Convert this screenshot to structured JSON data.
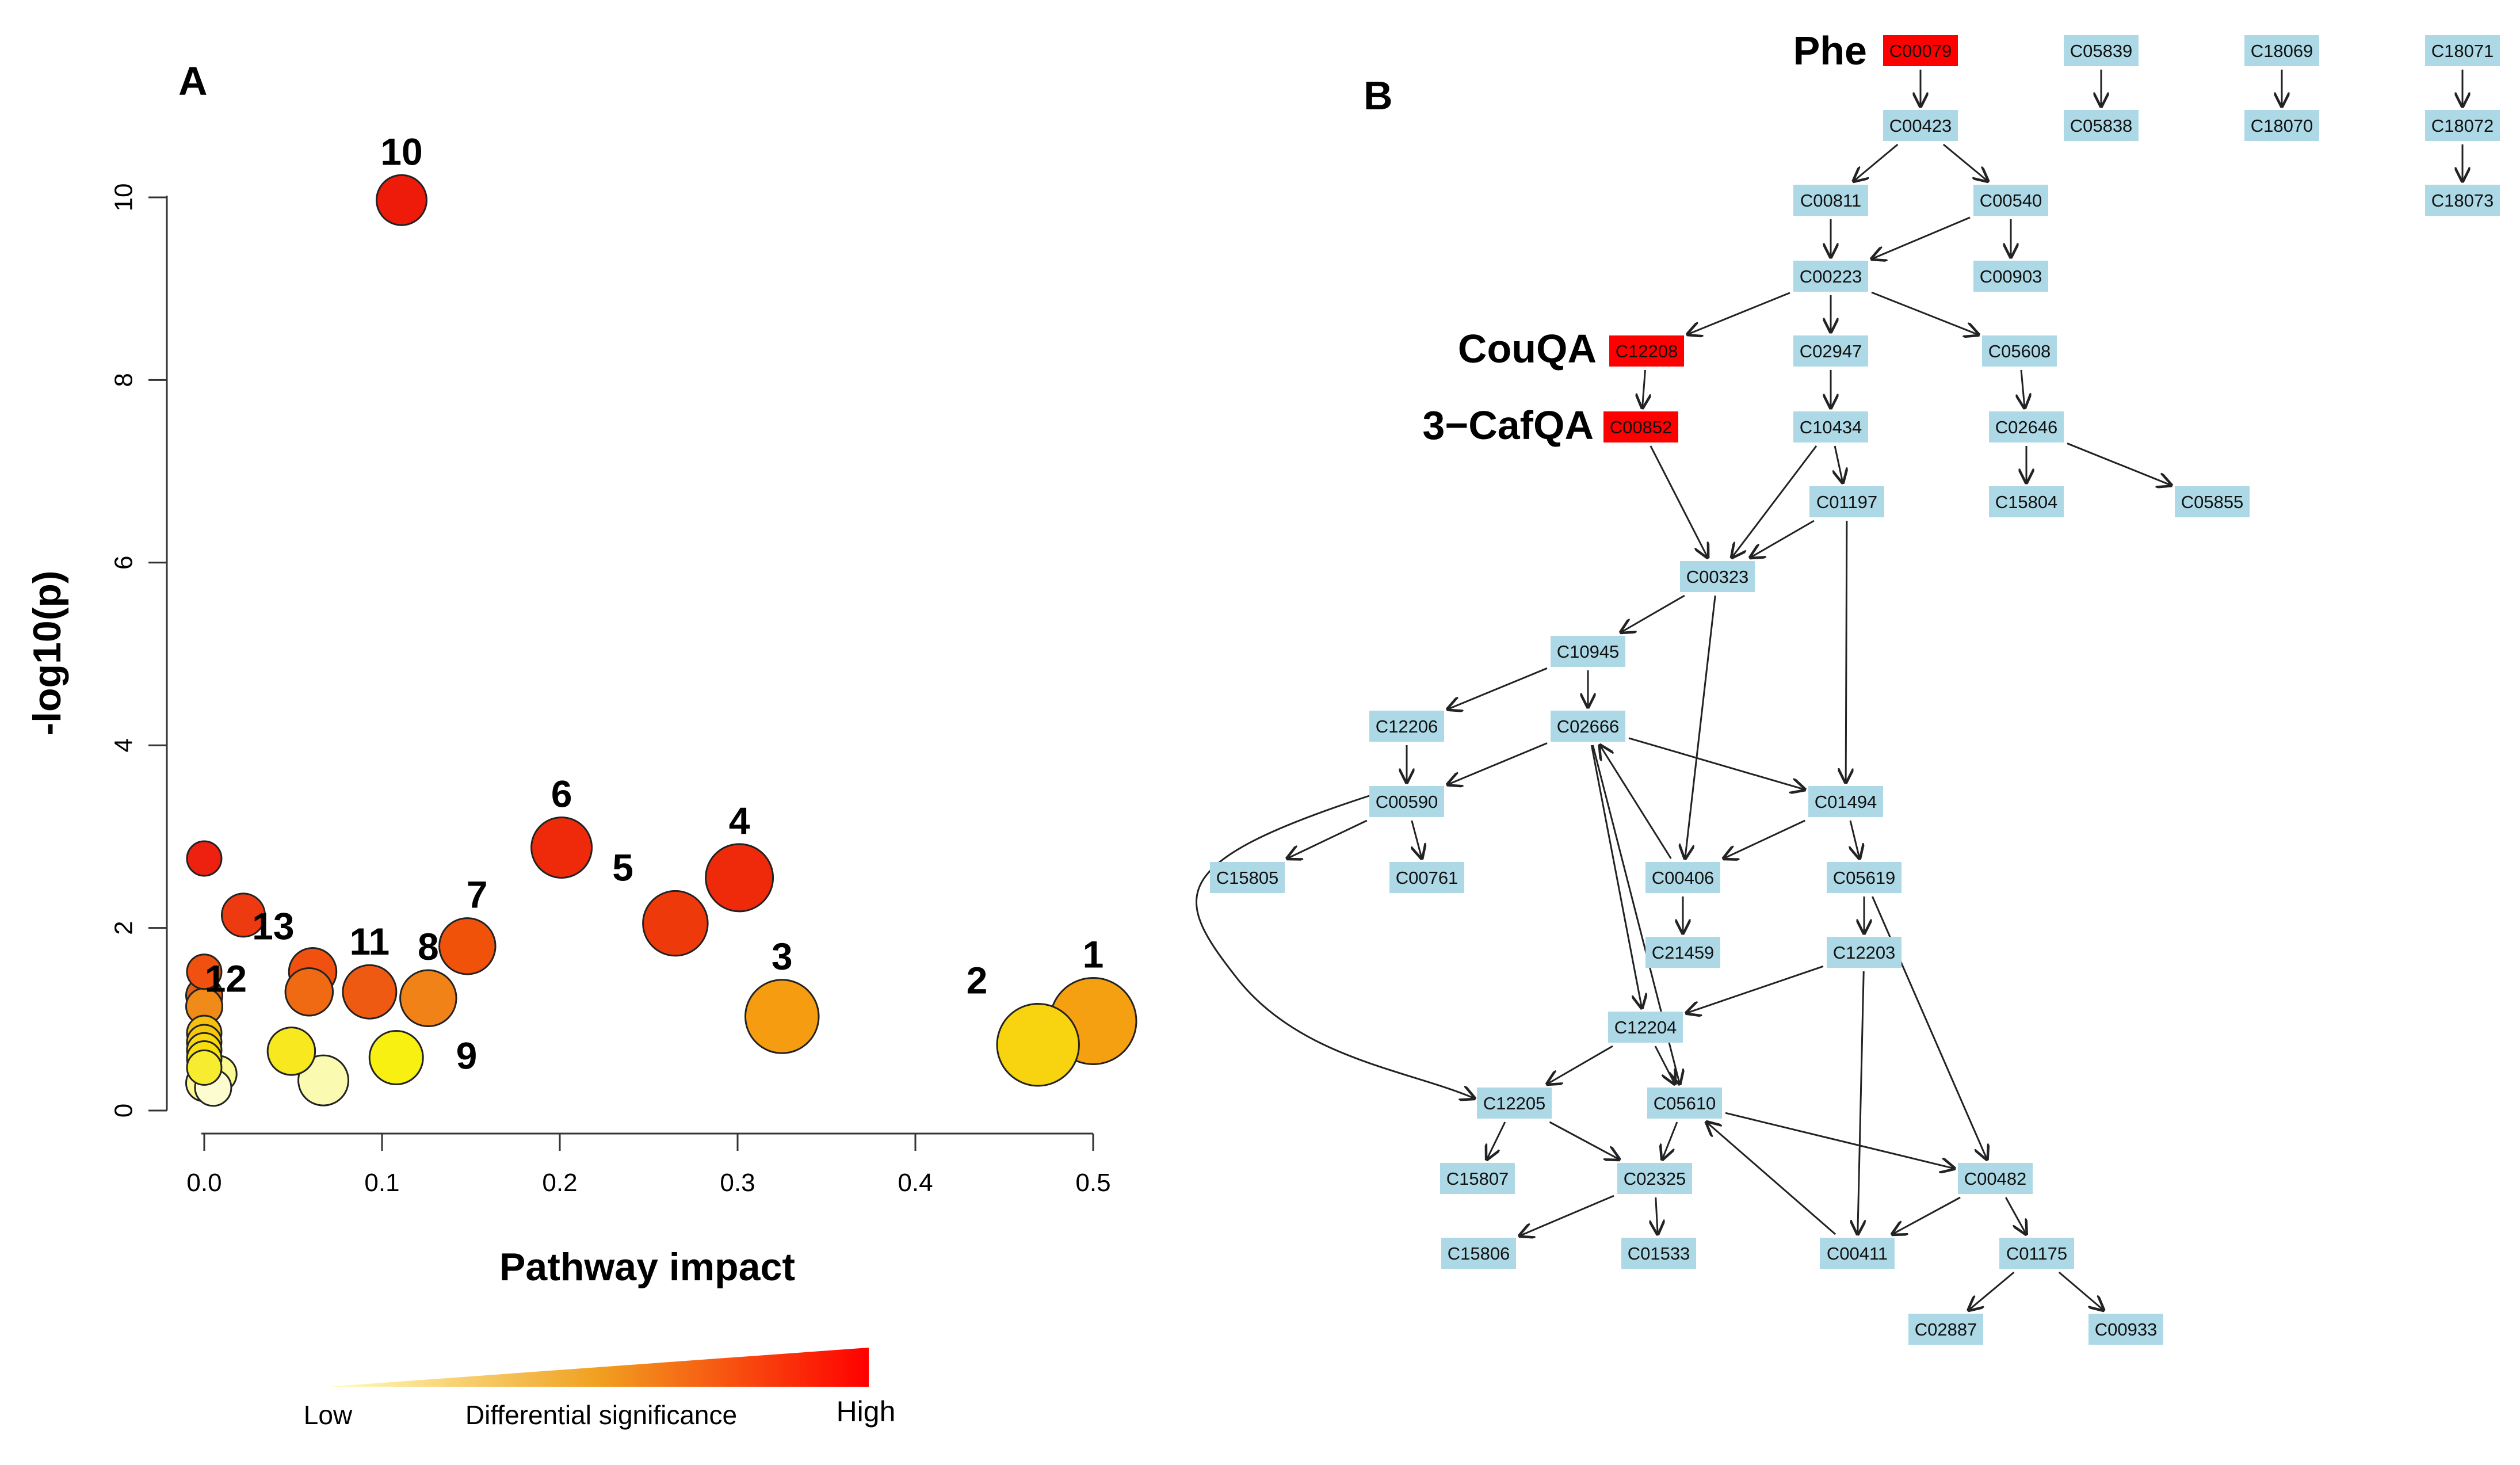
{
  "panel_a": {
    "label": "A",
    "colorbar": {
      "low": "Low",
      "mid": "Differential significance",
      "high": "High",
      "low_color": "#ffffc0",
      "mid_color": "#f0a020",
      "high_color": "#ff0000"
    }
  },
  "panel_b": {
    "label": "B",
    "highlight_color": "#ff0000",
    "node_color": "#add8e6",
    "annotations": {
      "phe": "Phe",
      "couqa": "CouQA",
      "cafqa": "3−CafQA"
    },
    "nodes": [
      {
        "id": "C00079",
        "hl": true
      },
      {
        "id": "C05839",
        "hl": false
      },
      {
        "id": "C18069",
        "hl": false
      },
      {
        "id": "C18071",
        "hl": false
      },
      {
        "id": "C00423",
        "hl": false
      },
      {
        "id": "C05838",
        "hl": false
      },
      {
        "id": "C18070",
        "hl": false
      },
      {
        "id": "C18072",
        "hl": false
      },
      {
        "id": "C00811",
        "hl": false
      },
      {
        "id": "C00540",
        "hl": false
      },
      {
        "id": "C18073",
        "hl": false
      },
      {
        "id": "C00223",
        "hl": false
      },
      {
        "id": "C00903",
        "hl": false
      },
      {
        "id": "C12208",
        "hl": true
      },
      {
        "id": "C02947",
        "hl": false
      },
      {
        "id": "C05608",
        "hl": false
      },
      {
        "id": "C00852",
        "hl": true
      },
      {
        "id": "C10434",
        "hl": false
      },
      {
        "id": "C02646",
        "hl": false
      },
      {
        "id": "C01197",
        "hl": false
      },
      {
        "id": "C15804",
        "hl": false
      },
      {
        "id": "C05855",
        "hl": false
      },
      {
        "id": "C00323",
        "hl": false
      },
      {
        "id": "C10945",
        "hl": false
      },
      {
        "id": "C12206",
        "hl": false
      },
      {
        "id": "C02666",
        "hl": false
      },
      {
        "id": "C00590",
        "hl": false
      },
      {
        "id": "C01494",
        "hl": false
      },
      {
        "id": "C15805",
        "hl": false
      },
      {
        "id": "C00761",
        "hl": false
      },
      {
        "id": "C00406",
        "hl": false
      },
      {
        "id": "C05619",
        "hl": false
      },
      {
        "id": "C21459",
        "hl": false
      },
      {
        "id": "C12203",
        "hl": false
      },
      {
        "id": "C12204",
        "hl": false
      },
      {
        "id": "C12205",
        "hl": false
      },
      {
        "id": "C05610",
        "hl": false
      },
      {
        "id": "C15807",
        "hl": false
      },
      {
        "id": "C02325",
        "hl": false
      },
      {
        "id": "C00482",
        "hl": false
      },
      {
        "id": "C15806",
        "hl": false
      },
      {
        "id": "C01533",
        "hl": false
      },
      {
        "id": "C00411",
        "hl": false
      },
      {
        "id": "C01175",
        "hl": false
      },
      {
        "id": "C02887",
        "hl": false
      },
      {
        "id": "C00933",
        "hl": false
      }
    ],
    "edges": [
      [
        "C00079",
        "C00423"
      ],
      [
        "C05839",
        "C05838"
      ],
      [
        "C18069",
        "C18070"
      ],
      [
        "C18071",
        "C18072"
      ],
      [
        "C18072",
        "C18073"
      ],
      [
        "C00423",
        "C00811"
      ],
      [
        "C00423",
        "C00540"
      ],
      [
        "C00811",
        "C00223"
      ],
      [
        "C00540",
        "C00223"
      ],
      [
        "C00540",
        "C00903"
      ],
      [
        "C00223",
        "C12208"
      ],
      [
        "C00223",
        "C02947"
      ],
      [
        "C00223",
        "C05608"
      ],
      [
        "C12208",
        "C00852"
      ],
      [
        "C02947",
        "C10434"
      ],
      [
        "C05608",
        "C02646"
      ],
      [
        "C10434",
        "C01197"
      ],
      [
        "C02646",
        "C15804"
      ],
      [
        "C02646",
        "C05855"
      ],
      [
        "C00852",
        "C00323"
      ],
      [
        "C10434",
        "C00323"
      ],
      [
        "C01197",
        "C00323"
      ],
      [
        "C01197",
        "C01494"
      ],
      [
        "C00323",
        "C10945"
      ],
      [
        "C00323",
        "C00406"
      ],
      [
        "C10945",
        "C12206"
      ],
      [
        "C10945",
        "C02666"
      ],
      [
        "C12206",
        "C00590"
      ],
      [
        "C02666",
        "C00590"
      ],
      [
        "C02666",
        "C01494"
      ],
      [
        "C02666",
        "C12204"
      ],
      [
        "C02666",
        "C05610"
      ],
      [
        "C00406",
        "C02666"
      ],
      [
        "C00590",
        "C15805"
      ],
      [
        "C00590",
        "C00761"
      ],
      [
        "C00590",
        "C12205"
      ],
      [
        "C01494",
        "C00406"
      ],
      [
        "C01494",
        "C05619"
      ],
      [
        "C00406",
        "C21459"
      ],
      [
        "C05619",
        "C12203"
      ],
      [
        "C05619",
        "C00482"
      ],
      [
        "C12203",
        "C12204"
      ],
      [
        "C12203",
        "C00411"
      ],
      [
        "C12204",
        "C12205"
      ],
      [
        "C12204",
        "C05610"
      ],
      [
        "C12205",
        "C15807"
      ],
      [
        "C12205",
        "C02325"
      ],
      [
        "C05610",
        "C02325"
      ],
      [
        "C05610",
        "C00482"
      ],
      [
        "C00411",
        "C05610"
      ],
      [
        "C02325",
        "C15806"
      ],
      [
        "C02325",
        "C01533"
      ],
      [
        "C00482",
        "C00411"
      ],
      [
        "C00482",
        "C01175"
      ],
      [
        "C01175",
        "C02887"
      ],
      [
        "C01175",
        "C00933"
      ]
    ]
  },
  "chart_data": {
    "type": "scatter",
    "title": "",
    "xlabel": "Pathway impact",
    "ylabel": "-log10(p)",
    "xlim": [
      0,
      0.5
    ],
    "ylim": [
      0,
      10
    ],
    "xticks": [
      "0.0",
      "0.1",
      "0.2",
      "0.3",
      "0.4",
      "0.5"
    ],
    "yticks": [
      "0",
      "2",
      "4",
      "6",
      "8",
      "10"
    ],
    "grid": false,
    "points": [
      {
        "label": "10",
        "x": 0.111,
        "y": 9.97,
        "size": 0.38,
        "color": "#ee1a0a"
      },
      {
        "label": "6",
        "x": 0.201,
        "y": 2.88,
        "size": 0.5,
        "color": "#ee2a0a"
      },
      {
        "label": "4",
        "x": 0.301,
        "y": 2.55,
        "size": 0.58,
        "color": "#ee2a0a"
      },
      {
        "label": "5",
        "x": 0.265,
        "y": 2.05,
        "size": 0.55,
        "color": "#ee3a0a"
      },
      {
        "label": "7",
        "x": 0.148,
        "y": 1.8,
        "size": 0.45,
        "color": "#f0520a"
      },
      {
        "label": "13",
        "x": 0.061,
        "y": 1.52,
        "size": 0.35,
        "color": "#f05010"
      },
      {
        "label": "11",
        "x": 0.093,
        "y": 1.3,
        "size": 0.42,
        "color": "#ef5a12"
      },
      {
        "label": "8",
        "x": 0.126,
        "y": 1.23,
        "size": 0.45,
        "color": "#f08218"
      },
      {
        "label": "12",
        "x": 0.059,
        "y": 1.3,
        "size": 0.35,
        "color": "#ef6a12"
      },
      {
        "label": "3",
        "x": 0.325,
        "y": 1.03,
        "size": 0.65,
        "color": "#f59c10"
      },
      {
        "label": "2",
        "x": 0.469,
        "y": 0.72,
        "size": 0.75,
        "color": "#f8d410"
      },
      {
        "label": "1",
        "x": 0.5,
        "y": 0.98,
        "size": 0.8,
        "color": "#f5a010"
      },
      {
        "label": "9",
        "x": 0.108,
        "y": 0.58,
        "size": 0.42,
        "color": "#f8f010"
      },
      {
        "label": "",
        "x": 0.0,
        "y": 2.76,
        "size": 0.2,
        "color": "#ee2010"
      },
      {
        "label": "",
        "x": 0.022,
        "y": 2.14,
        "size": 0.3,
        "color": "#ee3a10"
      },
      {
        "label": "",
        "x": 0.0,
        "y": 1.52,
        "size": 0.2,
        "color": "#f05010"
      },
      {
        "label": "",
        "x": 0.0,
        "y": 1.26,
        "size": 0.22,
        "color": "#e06018"
      },
      {
        "label": "",
        "x": 0.0,
        "y": 1.14,
        "size": 0.22,
        "color": "#f08a18"
      },
      {
        "label": "",
        "x": 0.0,
        "y": 0.85,
        "size": 0.2,
        "color": "#f5c010"
      },
      {
        "label": "",
        "x": 0.0,
        "y": 0.75,
        "size": 0.2,
        "color": "#f5c810"
      },
      {
        "label": "",
        "x": 0.0,
        "y": 0.66,
        "size": 0.2,
        "color": "#f8d810"
      },
      {
        "label": "",
        "x": 0.0,
        "y": 0.57,
        "size": 0.2,
        "color": "#f8e010"
      },
      {
        "label": "",
        "x": 0.0,
        "y": 0.47,
        "size": 0.2,
        "color": "#f8ec30"
      },
      {
        "label": "",
        "x": 0.0,
        "y": 0.3,
        "size": 0.22,
        "color": "#fafa90"
      },
      {
        "label": "",
        "x": 0.008,
        "y": 0.4,
        "size": 0.22,
        "color": "#fafa90"
      },
      {
        "label": "",
        "x": 0.005,
        "y": 0.25,
        "size": 0.22,
        "color": "#fcfcd0"
      },
      {
        "label": "",
        "x": 0.049,
        "y": 0.65,
        "size": 0.35,
        "color": "#f8e820"
      },
      {
        "label": "",
        "x": 0.067,
        "y": 0.33,
        "size": 0.38,
        "color": "#fafab0"
      }
    ]
  }
}
